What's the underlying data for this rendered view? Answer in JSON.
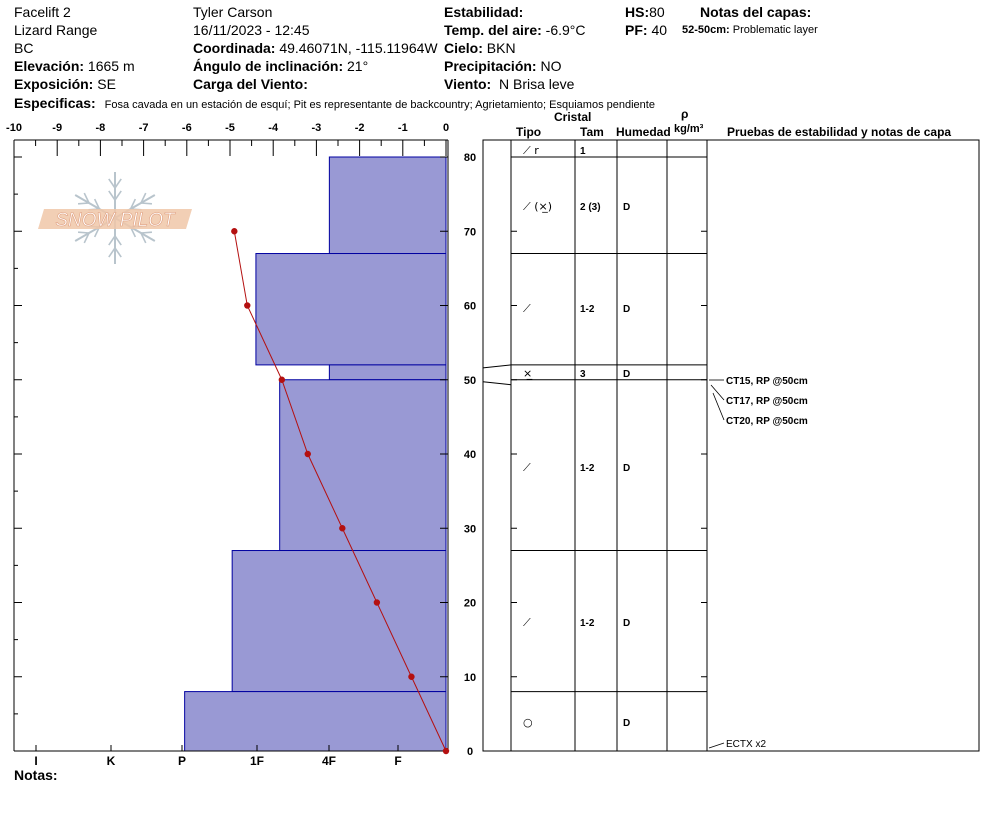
{
  "header": {
    "name": "Facelift 2",
    "range": "Lizard Range",
    "state": "BC",
    "elevation_label": "Elevación:",
    "elevation_value": "1665 m",
    "aspect_label": "Exposición:",
    "aspect_value": "SE",
    "observer": "Tyler Carson",
    "datetime": "16/11/2023 - 12:45",
    "coord_label": "Coordinada:",
    "coord_value": "49.46071N, -115.11964W",
    "incline_label": "Ángulo de inclinación:",
    "incline_value": "21°",
    "wind_load_label": "Carga del Viento:",
    "stability_label": "Estabilidad:",
    "airtemp_label": "Temp. del aire:",
    "airtemp_value": "-6.9°C",
    "sky_label": "Cielo:",
    "sky_value": "BKN",
    "precip_label": "Precipitación:",
    "precip_value": "NO",
    "wind_label": "Viento:",
    "wind_value": "N Brisa leve",
    "hs_label": "HS:",
    "hs_value": "80",
    "pf_label": "PF:",
    "pf_value": "40",
    "layer_notes_label": "Notas del capas:",
    "layer_note_range": "52-50cm:",
    "layer_note_text": "Problematic layer",
    "specifics_label": "Especificas:",
    "specifics_text": "Fosa cavada en un estación de esquí; Pit es representante de backcountry; Agrietamiento; Esquiamos pendiente",
    "notes_label": "Notas:"
  },
  "logo_text": "SNOW PILOT",
  "columns": {
    "crystal": "Cristal",
    "type": "Tipo",
    "size": "Tam",
    "moisture": "Humedad",
    "rho": "ρ",
    "density_unit": "kg/m³",
    "tests": "Pruebas de estabilidad y notas de capa"
  },
  "colors": {
    "hardness_fill": "#9999d4",
    "hardness_stroke": "#0000a0",
    "temp_line": "#b41010"
  },
  "chart_data": {
    "type": "area",
    "temp_axis": {
      "ticks": [
        -10,
        -9,
        -8,
        -7,
        -6,
        -5,
        -4,
        -3,
        -2,
        -1,
        0
      ],
      "range": [
        -10,
        0
      ]
    },
    "height_axis": {
      "ticks": [
        0,
        10,
        20,
        30,
        40,
        50,
        60,
        70,
        80
      ],
      "range": [
        0,
        80
      ]
    },
    "hardness_axis": [
      "I",
      "K",
      "P",
      "1F",
      "4F",
      "F"
    ],
    "hardness_layers": [
      {
        "top": 80,
        "bottom": 67,
        "value": -2.7
      },
      {
        "top": 67,
        "bottom": 52,
        "value": -4.4
      },
      {
        "top": 52,
        "bottom": 50,
        "value": -2.7
      },
      {
        "top": 50,
        "bottom": 27,
        "value": -3.85
      },
      {
        "top": 27,
        "bottom": 8,
        "value": -4.95
      },
      {
        "top": 8,
        "bottom": 0,
        "value": -6.05
      }
    ],
    "temperature_profile": [
      {
        "height": 70,
        "temp": -4.9
      },
      {
        "height": 60,
        "temp": -4.6
      },
      {
        "height": 50,
        "temp": -3.8
      },
      {
        "height": 40,
        "temp": -3.2
      },
      {
        "height": 30,
        "temp": -2.4
      },
      {
        "height": 20,
        "temp": -1.6
      },
      {
        "height": 10,
        "temp": -0.8
      },
      {
        "height": 0,
        "temp": 0
      }
    ]
  },
  "layers": [
    {
      "top": 80,
      "bottom": 80,
      "type_icon": "⟋ r",
      "size": "1",
      "moisture": ""
    },
    {
      "top": 80,
      "bottom": 67,
      "type_icon": "⟋ (⨯̲)",
      "size": "2 (3)",
      "moisture": "D"
    },
    {
      "top": 67,
      "bottom": 52,
      "type_icon": "⟋",
      "size": "1-2",
      "moisture": "D"
    },
    {
      "top": 52,
      "bottom": 50,
      "type_icon": "⨯̲",
      "size": "3",
      "moisture": "D"
    },
    {
      "top": 50,
      "bottom": 27,
      "type_icon": "⟋",
      "size": "1-2",
      "moisture": "D"
    },
    {
      "top": 27,
      "bottom": 8,
      "type_icon": "⟋",
      "size": "1-2",
      "moisture": "D"
    },
    {
      "top": 8,
      "bottom": 0,
      "type_icon": "○",
      "size": "",
      "moisture": "D"
    }
  ],
  "tests": [
    {
      "height": 50,
      "label": "CT15, RP @50cm"
    },
    {
      "height": 50,
      "label": "CT17, RP @50cm"
    },
    {
      "height": 50,
      "label": "CT20, RP @50cm"
    },
    {
      "height": 0,
      "label": "ECTX  x2"
    }
  ]
}
